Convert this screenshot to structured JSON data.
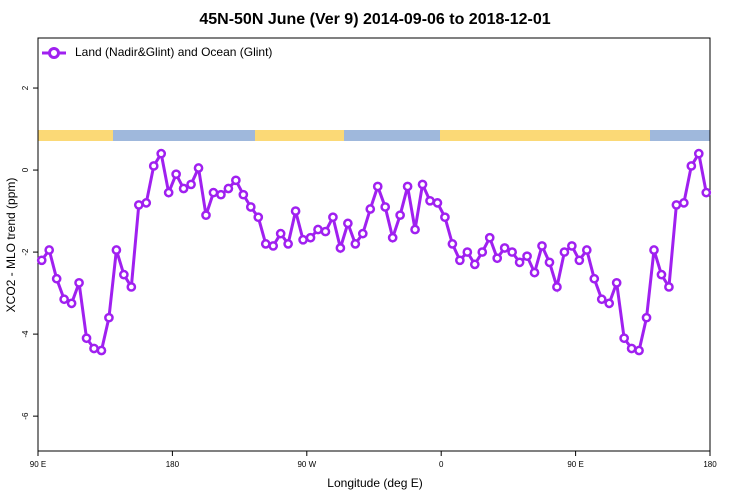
{
  "chart_data": {
    "type": "line",
    "title": "45N-50N June (Ver 9)   2014-09-06 to 2018-12-01",
    "x_label": "Longitude (deg E)",
    "y_label": "XCO2 - MLO trend (ppm)",
    "xlim": [
      90,
      540
    ],
    "ylim": [
      -6.85,
      3.22
    ],
    "xticks": [
      {
        "value": 90,
        "label": "90 E"
      },
      180,
      {
        "value": 270,
        "label": "90 W"
      },
      {
        "value": 360,
        "label": "0"
      },
      {
        "value": 450,
        "label": "90 E"
      },
      {
        "value": 540,
        "label": "180"
      }
    ],
    "yticks": [
      2,
      0,
      -2,
      -4,
      -6
    ],
    "legend": "top-left",
    "x": [
      92.5,
      97.5,
      102.5,
      107.5,
      112.5,
      117.5,
      122.5,
      127.5,
      132.5,
      137.5,
      142.5,
      147.5,
      152.5,
      157.5,
      162.5,
      167.5,
      172.5,
      177.5,
      182.5,
      187.5,
      192.5,
      197.5,
      202.5,
      207.5,
      212.5,
      217.5,
      222.5,
      227.5,
      232.5,
      237.5,
      242.5,
      247.5,
      252.5,
      257.5,
      262.5,
      267.5,
      272.5,
      277.5,
      282.5,
      287.5,
      292.5,
      297.5,
      302.5,
      307.5,
      312.5,
      317.5,
      322.5,
      327.5,
      332.5,
      337.5,
      342.5,
      347.5,
      352.5,
      357.5,
      362.5,
      367.5,
      372.5,
      377.5,
      382.5,
      387.5,
      392.5,
      397.5,
      402.5,
      407.5,
      412.5,
      417.5,
      422.5,
      427.5,
      432.5,
      437.5,
      442.5,
      447.5,
      452.5,
      457.5,
      462.5,
      467.5,
      472.5,
      477.5,
      482.5,
      487.5,
      492.5,
      497.5,
      502.5,
      507.5,
      512.5,
      517.5,
      522.5,
      527.5,
      532.5,
      537.5
    ],
    "series": [
      {
        "name": "Land (Nadir&Glint) and Ocean (Glint)",
        "color": "#a020f0",
        "values": [
          -2.2,
          -1.95,
          -2.65,
          -3.15,
          -3.25,
          -2.75,
          -4.1,
          -4.35,
          -4.4,
          -3.6,
          -1.95,
          -2.55,
          -2.85,
          -0.85,
          -0.8,
          0.1,
          0.4,
          -0.55,
          -0.1,
          -0.45,
          -0.35,
          0.05,
          -1.1,
          -0.55,
          -0.6,
          -0.45,
          -0.25,
          -0.6,
          -0.9,
          -1.15,
          -1.8,
          -1.85,
          -1.55,
          -1.8,
          -1.0,
          -1.7,
          -1.65,
          -1.45,
          -1.5,
          -1.15,
          -1.9,
          -1.3,
          -1.8,
          -1.55,
          -0.95,
          -0.4,
          -0.9,
          -1.65,
          -1.1,
          -0.4,
          -1.45,
          -0.35,
          -0.75,
          -0.8,
          -1.15,
          -1.8,
          -2.2,
          -2.0,
          -2.3,
          -2.0,
          -1.65,
          -2.15,
          -1.9,
          -2.0,
          -2.25,
          -2.1,
          -2.5,
          -1.85,
          -2.25,
          -2.85,
          -2.0,
          -1.85,
          -2.2,
          -1.95,
          -2.65,
          -3.15,
          -3.25,
          -2.75,
          -4.1,
          -4.35,
          -4.4,
          -3.6,
          -1.95,
          -2.55,
          -2.85,
          -0.85,
          -0.8,
          0.1,
          0.4,
          -0.55
        ]
      }
    ]
  }
}
